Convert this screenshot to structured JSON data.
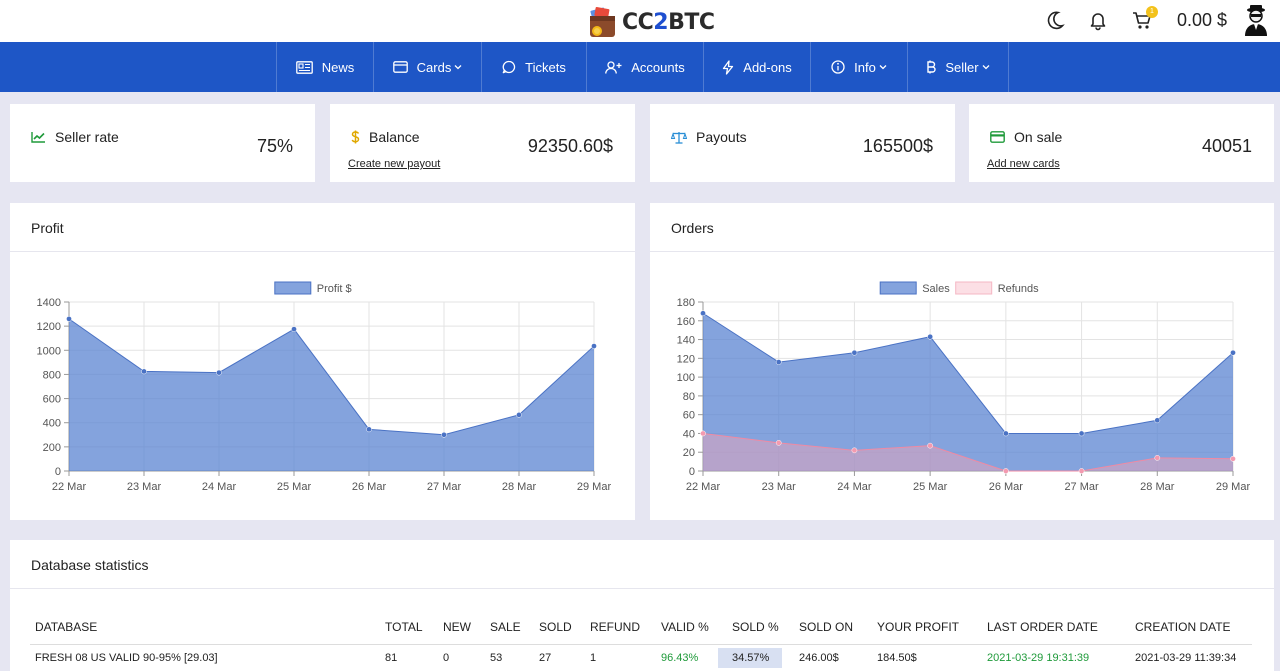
{
  "header": {
    "logo_text_a": "CC",
    "logo_text_b": "2",
    "logo_text_c": "BTC",
    "cart_count": "1",
    "balance": "0.00 $",
    "icons": [
      "moon-icon",
      "bell-icon",
      "cart-icon",
      "user-avatar-icon"
    ]
  },
  "nav": {
    "items": [
      {
        "label": "News",
        "icon": "newspaper-icon"
      },
      {
        "label": "Cards",
        "icon": "card-icon",
        "dropdown": true
      },
      {
        "label": "Tickets",
        "icon": "chat-icon"
      },
      {
        "label": "Accounts",
        "icon": "user-plus-icon"
      },
      {
        "label": "Add-ons",
        "icon": "bolt-icon"
      },
      {
        "label": "Info",
        "icon": "info-icon",
        "dropdown": true
      },
      {
        "label": "Seller",
        "icon": "bitcoin-icon",
        "dropdown": true
      }
    ]
  },
  "stats": [
    {
      "title": "Seller rate",
      "value": "75%",
      "link": "",
      "icon": "trend-icon",
      "color": "#1f9a3a"
    },
    {
      "title": "Balance",
      "value": "92350.60$",
      "link": "Create new payout",
      "icon": "dollar-icon",
      "color": "#e0a800"
    },
    {
      "title": "Payouts",
      "value": "165500$",
      "link": "",
      "icon": "scale-icon",
      "color": "#2b8fd6"
    },
    {
      "title": "On sale",
      "value": "40051",
      "link": "Add new cards",
      "icon": "card-icon",
      "color": "#1f9a3a"
    }
  ],
  "profit_panel": {
    "title": "Profit"
  },
  "orders_panel": {
    "title": "Orders"
  },
  "chart_data": [
    {
      "type": "area",
      "categories": [
        "22 Mar",
        "23 Mar",
        "24 Mar",
        "25 Mar",
        "26 Mar",
        "27 Mar",
        "28 Mar",
        "29 Mar"
      ],
      "series": [
        {
          "name": "Profit $",
          "values": [
            1260,
            825,
            815,
            1175,
            345,
            300,
            465,
            1035
          ],
          "color": "#5b84d1"
        }
      ],
      "ylim": [
        0,
        1400
      ],
      "yticks": [
        0,
        200,
        400,
        600,
        800,
        1000,
        1200,
        1400
      ],
      "grid": true,
      "legend": "top-center"
    },
    {
      "type": "area",
      "categories": [
        "22 Mar",
        "23 Mar",
        "24 Mar",
        "25 Mar",
        "26 Mar",
        "27 Mar",
        "28 Mar",
        "29 Mar"
      ],
      "series": [
        {
          "name": "Sales",
          "values": [
            168,
            116,
            126,
            143,
            40,
            40,
            54,
            126
          ],
          "color": "#5b84d1"
        },
        {
          "name": "Refunds",
          "values": [
            40,
            30,
            22,
            27,
            0,
            0,
            14,
            13
          ],
          "color": "#f5a3b5"
        }
      ],
      "ylim": [
        0,
        180
      ],
      "yticks": [
        0,
        20,
        40,
        60,
        80,
        100,
        120,
        140,
        160,
        180
      ],
      "grid": true,
      "legend": "top-center"
    }
  ],
  "database": {
    "title": "Database statistics",
    "columns": [
      "DATABASE",
      "TOTAL",
      "NEW",
      "SALE",
      "SOLD",
      "REFUND",
      "VALID %",
      "SOLD %",
      "SOLD ON",
      "YOUR PROFIT",
      "LAST ORDER DATE",
      "CREATION DATE"
    ],
    "rows": [
      [
        "FRESH 08 US VALID 90-95% [29.03]",
        "81",
        "0",
        "53",
        "27",
        "1",
        "96.43%",
        "34.57%",
        "246.00$",
        "184.50$",
        "2021-03-29 19:31:39",
        "2021-03-29 11:39:34"
      ]
    ]
  }
}
